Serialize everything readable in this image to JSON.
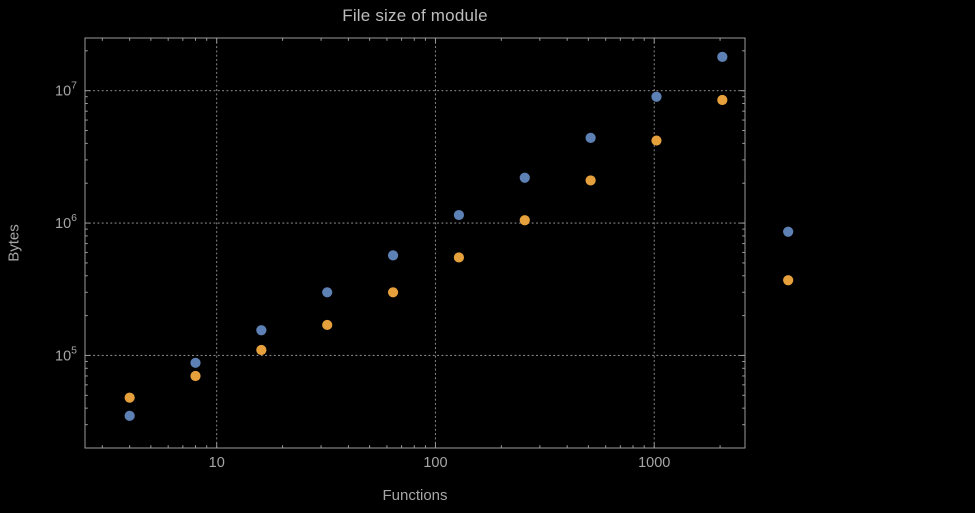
{
  "chart_data": {
    "type": "scatter",
    "title": "File size of module",
    "xlabel": "Functions",
    "ylabel": "Bytes",
    "x_scale": "log",
    "y_scale": "log",
    "xlim": [
      2.5,
      2600
    ],
    "ylim": [
      20000,
      25000000
    ],
    "grid": true,
    "legend": "none",
    "x_ticks": [
      {
        "value": 10,
        "label": "10"
      },
      {
        "value": 100,
        "label": "100"
      },
      {
        "value": 1000,
        "label": "1000"
      }
    ],
    "y_ticks": [
      {
        "value": 100000,
        "mantissa": "10",
        "exponent": "5"
      },
      {
        "value": 1000000,
        "mantissa": "10",
        "exponent": "6"
      },
      {
        "value": 10000000,
        "mantissa": "10",
        "exponent": "7"
      }
    ],
    "series": [
      {
        "name": "series-1-blue",
        "color": "#5e81b5",
        "points": [
          [
            4,
            35000
          ],
          [
            8,
            88000
          ],
          [
            16,
            155000
          ],
          [
            32,
            300000
          ],
          [
            64,
            570000
          ],
          [
            128,
            1150000
          ],
          [
            256,
            2200000
          ],
          [
            512,
            4400000
          ],
          [
            1024,
            9000000
          ],
          [
            2048,
            18000000
          ],
          [
            4096,
            860000
          ]
        ]
      },
      {
        "name": "series-2-orange",
        "color": "#e6a13c",
        "points": [
          [
            4,
            48000
          ],
          [
            8,
            70000
          ],
          [
            16,
            110000
          ],
          [
            32,
            170000
          ],
          [
            64,
            300000
          ],
          [
            128,
            550000
          ],
          [
            256,
            1050000
          ],
          [
            512,
            2100000
          ],
          [
            1024,
            4200000
          ],
          [
            2048,
            8500000
          ],
          [
            4096,
            370000
          ]
        ]
      }
    ]
  },
  "colors": {
    "background": "#000000",
    "frame": "#9a9a9a",
    "grid": "#868686",
    "tick": "#9a9a9a",
    "text": "#a6a6a6",
    "title": "#bdbdbd"
  }
}
